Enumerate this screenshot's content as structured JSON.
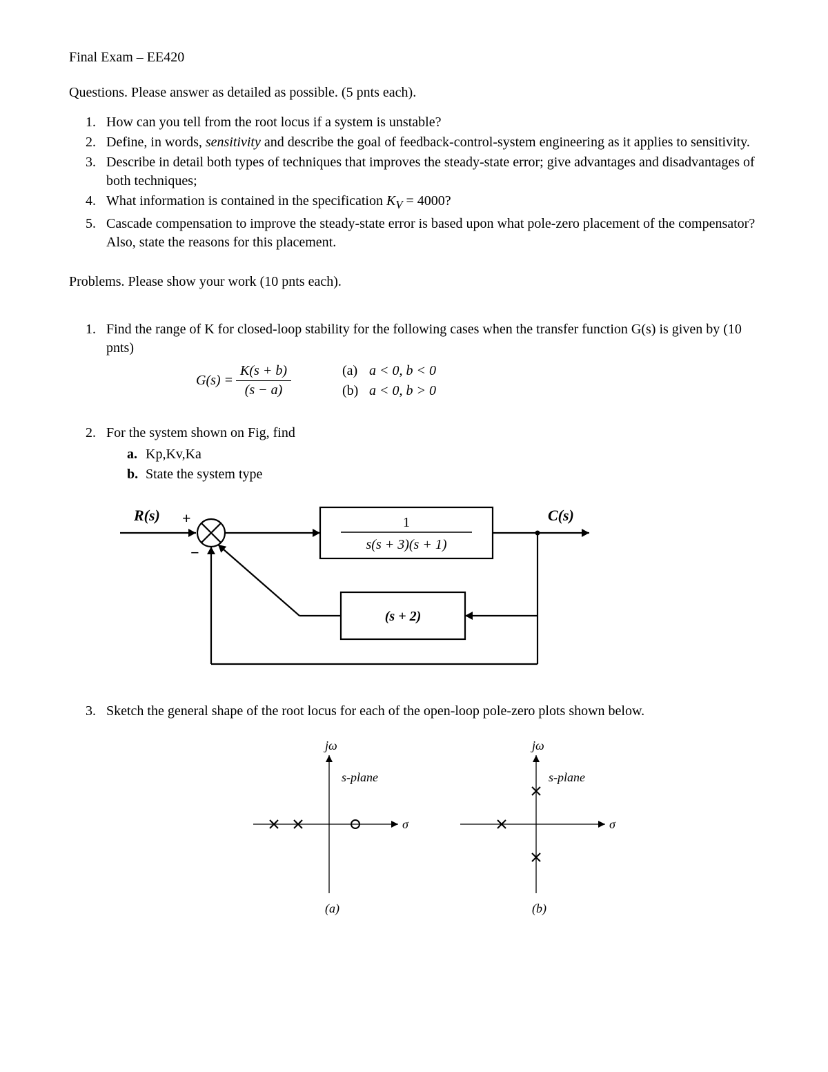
{
  "title": "Final Exam – EE420",
  "questions_intro": "Questions. Please answer as detailed as possible. (5 pnts each).",
  "questions": [
    "How can you tell from the root locus if a system is unstable?",
    "Define, in words, <span class=\"italic\">sensitivity</span> and describe the goal of feedback-control-system engineering as it applies to sensitivity.",
    "Describe in detail both types of techniques that improves the steady-state error; give advantages and disadvantages of both techniques;",
    "What information is contained in the specification <span class=\"italic\">K<sub>V</sub></span> = 4000?",
    "Cascade compensation to improve the steady-state error is based upon what pole-zero placement of the compensator? Also, state the reasons for this placement."
  ],
  "problems_intro": "Problems. Please show your work (10 pnts each).",
  "problem1": {
    "text": "Find the range of K for closed-loop stability for the following cases when the transfer function G(s) is given by (10 pnts)",
    "gs_label": "G(s) =",
    "numerator": "K(s + b)",
    "denominator": "(s − a)",
    "case_a_label": "(a)",
    "case_a": "a < 0, b < 0",
    "case_b_label": "(b)",
    "case_b": "a < 0, b > 0"
  },
  "problem2": {
    "text": "For the system shown on Fig, find",
    "sub_a_label": "a.",
    "sub_a": "Kp,Kv,Ka",
    "sub_b_label": "b.",
    "sub_b": "State the system type",
    "diagram": {
      "input_label": "R(s)",
      "plus": "+",
      "minus": "−",
      "forward_num": "1",
      "forward_den": "s(s + 3)(s + 1)",
      "feedback": "(s + 2)",
      "output_label": "C(s)",
      "stroke": "#000000",
      "stroke_width": 2.2,
      "fontsize_label": 22,
      "fontsize_block": 20
    }
  },
  "problem3": {
    "text": "Sketch the general shape of the root locus for each of the open-loop pole-zero plots shown below.",
    "splane": {
      "jw_label": "jω",
      "splane_label": "s-plane",
      "sigma_label": "σ",
      "sub_a": "(a)",
      "sub_b": "(b)",
      "stroke": "#000000",
      "stroke_width": 1.3,
      "fontsize": 18,
      "sub_fontsize": 18,
      "a": {
        "poles_x": [
          -80,
          -45
        ],
        "zeros_x": [
          38
        ]
      },
      "b": {
        "poles_x": [
          -50
        ],
        "poles_y": [
          48,
          -48
        ]
      }
    }
  }
}
